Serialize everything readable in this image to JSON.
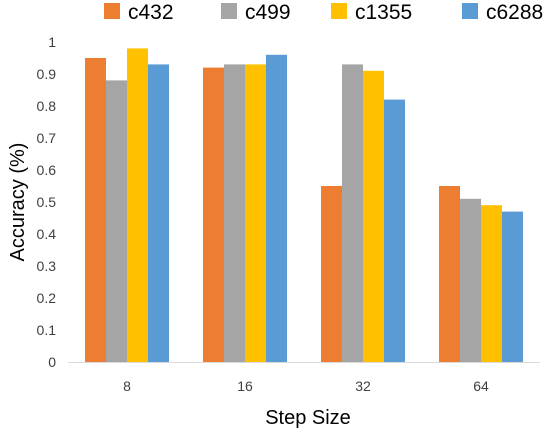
{
  "chart_data": {
    "type": "bar",
    "title": "",
    "xlabel": "Step Size",
    "ylabel": "Accuracy (%)",
    "ylim": [
      0,
      1
    ],
    "yticks": [
      0,
      0.1,
      0.2,
      0.3,
      0.4,
      0.5,
      0.6,
      0.7,
      0.8,
      0.9,
      1
    ],
    "ytick_labels": [
      "0",
      "0.1",
      "0.2",
      "0.3",
      "0.4",
      "0.5",
      "0.6",
      "0.7",
      "0.8",
      "0.9",
      "1"
    ],
    "categories": [
      "8",
      "16",
      "32",
      "64"
    ],
    "grid": false,
    "legend_position": "top",
    "series": [
      {
        "name": "c432",
        "color": "#ED7D31",
        "values": [
          0.95,
          0.92,
          0.55,
          0.55
        ]
      },
      {
        "name": "c499",
        "color": "#A5A5A5",
        "values": [
          0.88,
          0.93,
          0.93,
          0.51
        ]
      },
      {
        "name": "c1355",
        "color": "#FFC000",
        "values": [
          0.98,
          0.93,
          0.91,
          0.49
        ]
      },
      {
        "name": "c6288",
        "color": "#5B9BD5",
        "values": [
          0.93,
          0.96,
          0.82,
          0.47
        ]
      }
    ]
  }
}
